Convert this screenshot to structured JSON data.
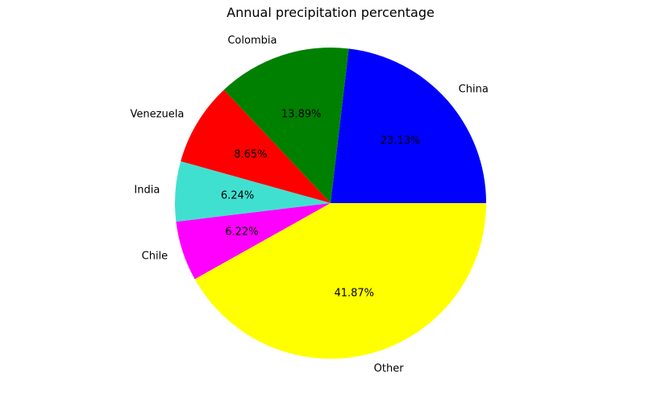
{
  "chart_data": {
    "type": "pie",
    "title": "Annual precipitation percentage",
    "slices": [
      {
        "label": "China",
        "value": 23.13,
        "pct_label": "23.13%",
        "color": "#0000ff"
      },
      {
        "label": "Colombia",
        "value": 13.89,
        "pct_label": "13.89%",
        "color": "#008000"
      },
      {
        "label": "Venezuela",
        "value": 8.65,
        "pct_label": "8.65%",
        "color": "#ff0000"
      },
      {
        "label": "India",
        "value": 6.24,
        "pct_label": "6.24%",
        "color": "#40e0d0"
      },
      {
        "label": "Chile",
        "value": 6.22,
        "pct_label": "6.22%",
        "color": "#ff00ff"
      },
      {
        "label": "Other",
        "value": 41.87,
        "pct_label": "41.87%",
        "color": "#ffff00"
      }
    ],
    "start_angle_deg": 0,
    "direction": "counterclockwise",
    "legend": "none"
  }
}
